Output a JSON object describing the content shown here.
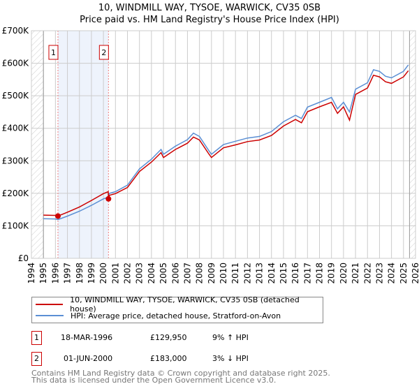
{
  "title_line1": "10, WINDMILL WAY, TYSOE, WARWICK, CV35 0SB",
  "title_line2": "Price paid vs. HM Land Registry's House Price Index (HPI)",
  "chart_data": {
    "type": "line",
    "xlim": [
      1994,
      2026
    ],
    "ylim": [
      0,
      700000
    ],
    "x_ticks": [
      "1994",
      "1995",
      "1996",
      "1997",
      "1998",
      "1999",
      "2000",
      "2001",
      "2002",
      "2003",
      "2004",
      "2005",
      "2006",
      "2007",
      "2008",
      "2009",
      "2010",
      "2011",
      "2012",
      "2013",
      "2014",
      "2015",
      "2016",
      "2017",
      "2018",
      "2019",
      "2020",
      "2021",
      "2022",
      "2023",
      "2024",
      "2025",
      "2026"
    ],
    "y_ticks": [
      {
        "v": 0,
        "label": "£0"
      },
      {
        "v": 100000,
        "label": "£100K"
      },
      {
        "v": 200000,
        "label": "£200K"
      },
      {
        "v": 300000,
        "label": "£300K"
      },
      {
        "v": 400000,
        "label": "£400K"
      },
      {
        "v": 500000,
        "label": "£500K"
      },
      {
        "v": 600000,
        "label": "£600K"
      },
      {
        "v": 700000,
        "label": "£700K"
      }
    ],
    "grid": true,
    "data_start": 1995,
    "data_end": 2025.5,
    "series": [
      {
        "name": "10, WINDMILL WAY, TYSOE, WARWICK, CV35 0SB (detached house)",
        "color": "#cc0000",
        "x": [
          1995,
          1996,
          1996.21,
          1997,
          1998,
          1999,
          2000,
          2000.4,
          2000.42,
          2000.5,
          2001,
          2002,
          2003,
          2004,
          2004.8,
          2005,
          2006,
          2007,
          2007.5,
          2008,
          2008.8,
          2009,
          2010,
          2011,
          2012,
          2013,
          2014,
          2015,
          2016,
          2016.5,
          2017,
          2018,
          2019,
          2019.5,
          2020,
          2020.5,
          2021,
          2022,
          2022.5,
          2023,
          2023.5,
          2024,
          2025,
          2025.4
        ],
        "values": [
          133000,
          132000,
          129950,
          142000,
          158000,
          178000,
          199000,
          205000,
          183000,
          194000,
          199000,
          218000,
          267000,
          296000,
          325000,
          310000,
          335000,
          354000,
          373000,
          364000,
          320000,
          310000,
          340000,
          349000,
          359000,
          364000,
          378000,
          407000,
          427000,
          417000,
          451000,
          466000,
          480000,
          446000,
          466000,
          425000,
          504000,
          524000,
          563000,
          558000,
          543000,
          538000,
          558000,
          577000
        ]
      },
      {
        "name": "HPI: Average price, detached house, Stratford-on-Avon",
        "color": "#5b8fd4",
        "x": [
          1995,
          1996,
          1996.2,
          1997,
          1998,
          1999,
          2000,
          2000.4,
          2000.5,
          2001,
          2002,
          2003,
          2004,
          2004.8,
          2005,
          2006,
          2007,
          2007.5,
          2008,
          2008.8,
          2009,
          2010,
          2011,
          2012,
          2013,
          2014,
          2015,
          2016,
          2016.5,
          2017,
          2018,
          2019,
          2019.5,
          2020,
          2020.5,
          2021,
          2022,
          2022.5,
          2023,
          2023.5,
          2024,
          2025,
          2025.4
        ],
        "values": [
          122000,
          121000,
          119000,
          130000,
          145000,
          163000,
          183000,
          188000,
          200000,
          205000,
          225000,
          275000,
          305000,
          335000,
          320000,
          345000,
          365000,
          385000,
          375000,
          330000,
          320000,
          350000,
          360000,
          370000,
          375000,
          390000,
          420000,
          440000,
          430000,
          465000,
          480000,
          495000,
          460000,
          480000,
          450000,
          520000,
          540000,
          580000,
          575000,
          560000,
          555000,
          575000,
          595000
        ]
      }
    ],
    "sales": [
      {
        "id": "1",
        "x": 1996.21,
        "value": 129950
      },
      {
        "id": "2",
        "x": 2000.42,
        "value": 183000
      }
    ]
  },
  "legend": {
    "property": "10, WINDMILL WAY, TYSOE, WARWICK, CV35 0SB (detached house)",
    "hpi": "HPI: Average price, detached house, Stratford-on-Avon"
  },
  "transactions": [
    {
      "id": "1",
      "date": "18-MAR-1996",
      "price": "£129,950",
      "hpi": "9% ↑ HPI"
    },
    {
      "id": "2",
      "date": "01-JUN-2000",
      "price": "£183,000",
      "hpi": "3% ↓ HPI"
    }
  ],
  "footer_line1": "Contains HM Land Registry data © Crown copyright and database right 2025.",
  "footer_line2": "This data is licensed under the Open Government Licence v3.0."
}
